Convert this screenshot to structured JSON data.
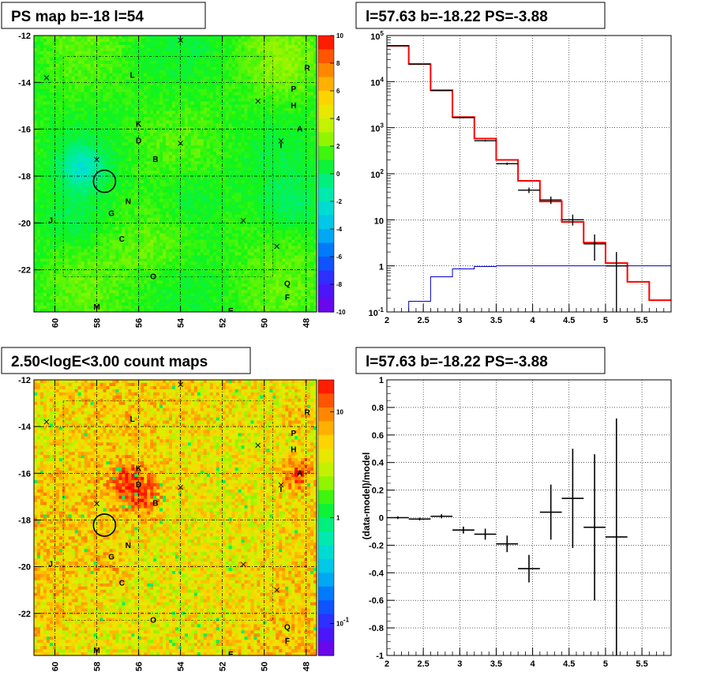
{
  "chart_data": [
    {
      "type": "heatmap",
      "title": "PS map b=-18 l=54",
      "xlim": [
        61,
        47.5
      ],
      "ylim": [
        -23.8,
        -12
      ],
      "x_ticks": [
        "60",
        "58",
        "56",
        "54",
        "52",
        "50",
        "48"
      ],
      "y_ticks": [
        "-12",
        "-14",
        "-16",
        "-18",
        "-20",
        "-22"
      ],
      "colorbar": {
        "scale": "linear",
        "range": [
          -10,
          10
        ],
        "ticks": [
          "10",
          "8",
          "6",
          "4",
          "2",
          "0",
          "-2",
          "-4",
          "-6",
          "-8",
          "-10"
        ]
      },
      "grid": true
    },
    {
      "type": "line",
      "title": "l=57.63 b=-18.22 PS=-3.88",
      "yscale": "log",
      "xlim": [
        2,
        5.9
      ],
      "ylim": [
        0.1,
        100000
      ],
      "x_ticks": [
        "2",
        "2.5",
        "3",
        "3.5",
        "4",
        "4.5",
        "5",
        "5.5"
      ],
      "y_ticks": [
        "10^5",
        "10^4",
        "10^3",
        "10^2",
        "10",
        "1",
        "10^-1"
      ],
      "grid": true,
      "series": [
        {
          "kind": "step",
          "color": "#ff0000",
          "edges": [
            2.0,
            2.3,
            2.6,
            2.9,
            3.2,
            3.5,
            3.8,
            4.1,
            4.4,
            4.7,
            5.0,
            5.3,
            5.6,
            5.9
          ],
          "values": [
            60000,
            24000,
            6500,
            1700,
            580,
            200,
            70,
            25,
            9,
            3.2,
            1.15,
            0.45,
            0.18
          ]
        },
        {
          "kind": "step",
          "color": "#0000cc",
          "edges": [
            2.0,
            2.3,
            2.6,
            2.9,
            3.2,
            3.5,
            3.8,
            4.1,
            4.4,
            4.7,
            5.0,
            5.3,
            5.6,
            5.9
          ],
          "values": [
            0.1,
            0.17,
            0.58,
            0.86,
            0.97,
            1.0,
            1.0,
            1.0,
            1.0,
            1.0,
            1.0,
            1.0,
            1.0
          ]
        },
        {
          "kind": "errorbar",
          "color": "#000000",
          "x": [
            2.15,
            2.45,
            2.75,
            3.05,
            3.35,
            3.65,
            3.95,
            4.25,
            4.55,
            4.85,
            5.15
          ],
          "xerr": 0.15,
          "y": [
            60000,
            24000,
            6400,
            1650,
            520,
            165,
            44,
            27,
            10,
            3,
            1
          ],
          "ylo": [
            59000,
            23500,
            6250,
            1600,
            500,
            155,
            38,
            22,
            7.5,
            1.3,
            0.1
          ],
          "yhi": [
            61000,
            24500,
            6550,
            1700,
            540,
            175,
            50,
            32,
            13,
            4.8,
            2
          ]
        }
      ]
    },
    {
      "type": "heatmap",
      "title": "2.50<logE<3.00 count maps",
      "xlim": [
        61,
        47.5
      ],
      "ylim": [
        -23.8,
        -12
      ],
      "x_ticks": [
        "60",
        "58",
        "56",
        "54",
        "52",
        "50",
        "48"
      ],
      "y_ticks": [
        "-12",
        "-14",
        "-16",
        "-18",
        "-20",
        "-22"
      ],
      "colorbar": {
        "scale": "log",
        "range": [
          0.05,
          20
        ],
        "ticks": [
          "10",
          "1",
          "10^-1"
        ]
      },
      "grid": true
    },
    {
      "type": "scatter",
      "title": "l=57.63 b=-18.22 PS=-3.88",
      "ylabel": "(data-model)/model",
      "xlim": [
        2,
        5.9
      ],
      "ylim": [
        -1,
        1
      ],
      "x_ticks": [
        "2",
        "2.5",
        "3",
        "3.5",
        "4",
        "4.5",
        "5",
        "5.5"
      ],
      "y_ticks": [
        "1",
        "0.8",
        "0.6",
        "0.4",
        "0.2",
        "0",
        "-0.2",
        "-0.4",
        "-0.6",
        "-0.8",
        "-1"
      ],
      "grid": true,
      "x": [
        2.15,
        2.45,
        2.75,
        3.05,
        3.35,
        3.65,
        3.95,
        4.25,
        4.55,
        4.85,
        5.15
      ],
      "xerr": 0.15,
      "y": [
        0.0,
        -0.01,
        0.01,
        -0.09,
        -0.12,
        -0.19,
        -0.37,
        0.04,
        0.14,
        -0.07,
        -0.14
      ],
      "yerr": [
        0.01,
        0.01,
        0.015,
        0.025,
        0.04,
        0.06,
        0.1,
        0.2,
        0.36,
        0.53,
        0.86
      ]
    }
  ],
  "sources": [
    {
      "label": "L",
      "l": 56.3,
      "b": -13.8
    },
    {
      "label": "P",
      "l": 48.6,
      "b": -14.4
    },
    {
      "label": "R",
      "l": 47.95,
      "b": -13.5
    },
    {
      "label": "H",
      "l": 48.6,
      "b": -15.1
    },
    {
      "label": "A",
      "l": 48.3,
      "b": -16.1
    },
    {
      "label": "K",
      "l": 56.0,
      "b": -15.9
    },
    {
      "label": "D",
      "l": 56.0,
      "b": -16.6
    },
    {
      "label": "B",
      "l": 55.2,
      "b": -17.4
    },
    {
      "label": "I",
      "l": 49.2,
      "b": -16.8
    },
    {
      "label": "N",
      "l": 56.5,
      "b": -19.2
    },
    {
      "label": "G",
      "l": 57.3,
      "b": -19.7
    },
    {
      "label": "J",
      "l": 60.2,
      "b": -20.0
    },
    {
      "label": "C",
      "l": 56.8,
      "b": -20.8
    },
    {
      "label": "O",
      "l": 55.3,
      "b": -22.4
    },
    {
      "label": "Q",
      "l": 48.9,
      "b": -22.7
    },
    {
      "label": "F",
      "l": 48.9,
      "b": -23.3
    },
    {
      "label": "M",
      "l": 58.0,
      "b": -23.7
    },
    {
      "label": "E",
      "l": 51.6,
      "b": -24.2
    }
  ],
  "crosses": [
    {
      "l": 54.0,
      "b": -12.2
    },
    {
      "l": 60.4,
      "b": -13.8
    },
    {
      "l": 50.3,
      "b": -14.8
    },
    {
      "l": 49.2,
      "b": -16.5
    },
    {
      "l": 54.0,
      "b": -16.6
    },
    {
      "l": 58.0,
      "b": -17.3
    },
    {
      "l": 51.0,
      "b": -19.9
    },
    {
      "l": 49.4,
      "b": -21.0
    }
  ],
  "circle": {
    "l": 57.63,
    "b": -18.22
  }
}
